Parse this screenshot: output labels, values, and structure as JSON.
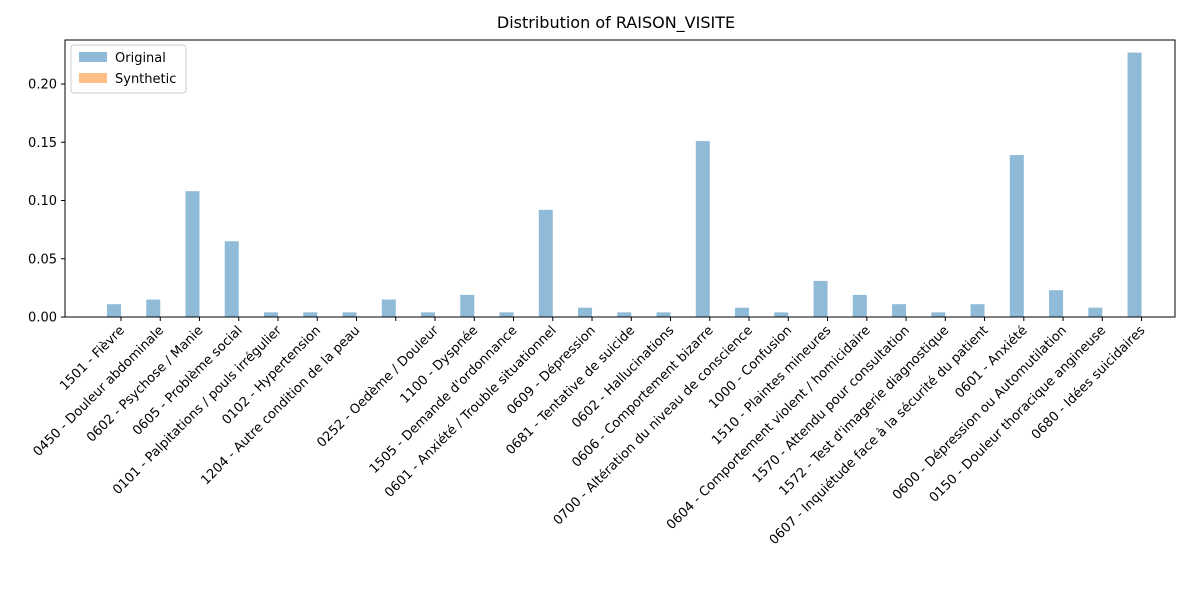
{
  "chart_data": {
    "type": "bar",
    "title": "Distribution of RAISON_VISITE",
    "categories": [
      "1501 - Fièvre",
      "0450 - Douleur abdominale",
      "0602 - Psychose / Manie",
      "0605 - Problème social",
      "0101 - Palpitations / pouls irrégulier",
      "0102 - Hypertension",
      "1204 - Autre condition de la peau",
      null,
      "0252 - Oedème / Douleur",
      "1100 - Dyspnée",
      "1505 - Demande d'ordonnance",
      "0601 - Anxiété / Trouble situationnel",
      "0609 - Dépression",
      "0681 - Tentative de suicide",
      "0602 - Hallucinations",
      "0606 - Comportement bizarre",
      "0700 - Altération du niveau de conscience",
      "1000 - Confusion",
      "1510 - Plaintes mineures",
      "0604 - Comportement violent / homicidaire",
      "1570 - Attendu pour consultation",
      "1572 - Test d'imagerie diagnostique",
      "0607 - Inquiétude face à la sécurité du patient",
      "0601 - Anxiété",
      "0600 - Dépression ou Automutilation",
      "0150 - Douleur thoracique angineuse",
      "0680 - Idées suicidaires"
    ],
    "series": [
      {
        "name": "Original",
        "color": "#1f77b4",
        "values": [
          0.011,
          0.015,
          0.108,
          0.065,
          0.004,
          0.004,
          0.004,
          0.015,
          0.004,
          0.019,
          0.004,
          0.092,
          0.008,
          0.004,
          0.004,
          0.151,
          0.008,
          0.004,
          0.031,
          0.019,
          0.011,
          0.004,
          0.011,
          0.139,
          0.023,
          0.008,
          0.227
        ]
      },
      {
        "name": "Synthetic",
        "color": "#ff7f0e",
        "values": [
          0,
          0,
          0,
          0,
          0,
          0,
          0,
          0,
          0,
          0,
          0,
          0,
          0,
          0,
          0,
          0,
          0,
          0,
          0,
          0,
          0,
          0,
          0,
          0,
          0,
          0,
          0
        ]
      }
    ],
    "ylim": [
      0,
      0.2378
    ],
    "yticks": [
      {
        "value": 0,
        "label": "0.00"
      },
      {
        "value": 0.05,
        "label": "0.05"
      },
      {
        "value": 0.1,
        "label": "0.10"
      },
      {
        "value": 0.15,
        "label": "0.15"
      },
      {
        "value": 0.2,
        "label": "0.20"
      }
    ],
    "grid": false,
    "legend": "upper left"
  }
}
